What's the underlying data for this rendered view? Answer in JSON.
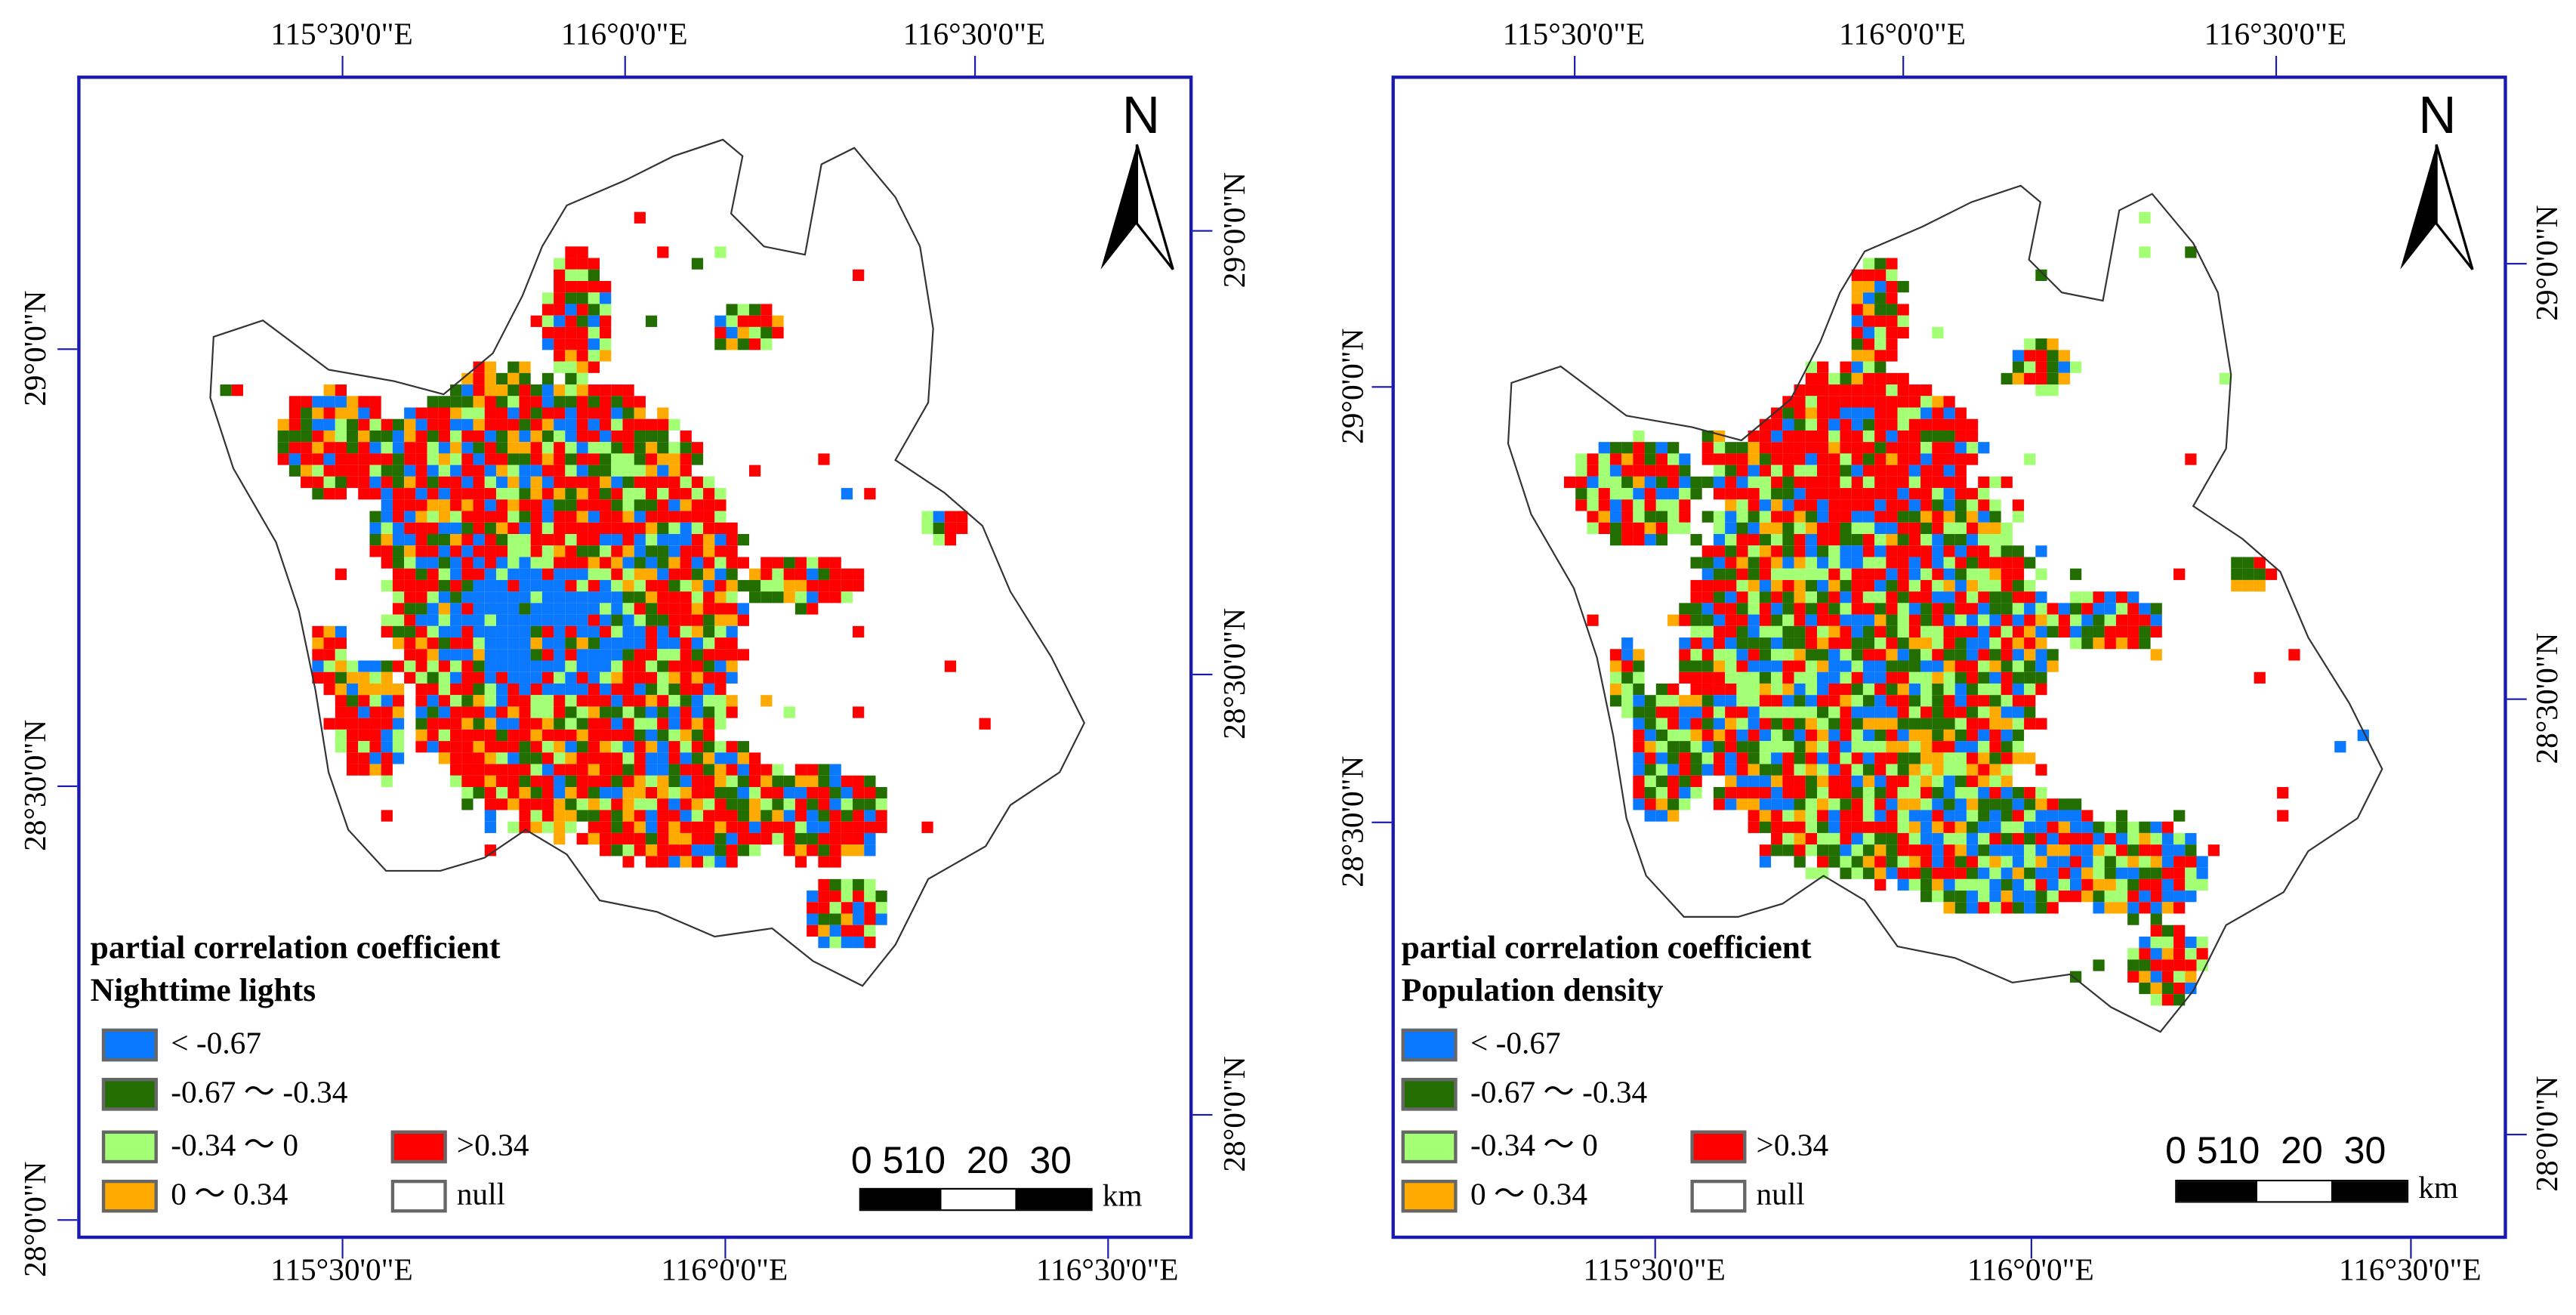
{
  "legend_colors": {
    "lt_neg067": "#0A78FF",
    "neg067_neg034": "#226E00",
    "neg034_0": "#A3FF73",
    "0_034": "#FFAA00",
    "gt034": "#FF0000",
    "null": "#FFFFFF"
  },
  "panels": [
    {
      "variable": "Nighttime lights",
      "legend_title": "partial correlation coefficient",
      "top_lon_labels": [
        "115°30'0\"E",
        "116°0'0\"E",
        "116°30'0\"E"
      ],
      "bottom_lon_labels": [
        "115°30'0\"E",
        "116°0'0\"E",
        "116°30'0\"E"
      ],
      "left_lat_labels": [
        "29°0'0\"N",
        "28°30'0\"N",
        "28°0'0\"N"
      ],
      "right_lat_labels": [
        "29°0'0\"N",
        "28°30'0\"N",
        "28°0'0\"N"
      ],
      "legend": [
        "< -0.67",
        "-0.67 ～ -0.34",
        "-0.34 ～ 0",
        "0 ～ 0.34",
        ">0.34",
        "null"
      ],
      "north": "N",
      "scale_numbers": "0 510  20  30",
      "scale_unit": "km"
    },
    {
      "variable": "Population density",
      "legend_title": "partial correlation coefficient",
      "top_lon_labels": [
        "115°30'0\"E",
        "116°0'0\"E",
        "116°30'0\"E"
      ],
      "bottom_lon_labels": [
        "115°30'0\"E",
        "116°0'0\"E",
        "116°30'0\"E"
      ],
      "left_lat_labels": [
        "29°0'0\"N",
        "28°30'0\"N"
      ],
      "right_lat_labels": [
        "29°0'0\"N",
        "28°30'0\"N",
        "28°0'0\"N"
      ],
      "legend": [
        "< -0.67",
        "-0.67 ～ -0.34",
        "-0.34 ～ 0",
        "0 ～ 0.34",
        ">0.34",
        "null"
      ],
      "north": "N",
      "scale_numbers": "0 510  20  30",
      "scale_unit": "km"
    }
  ]
}
